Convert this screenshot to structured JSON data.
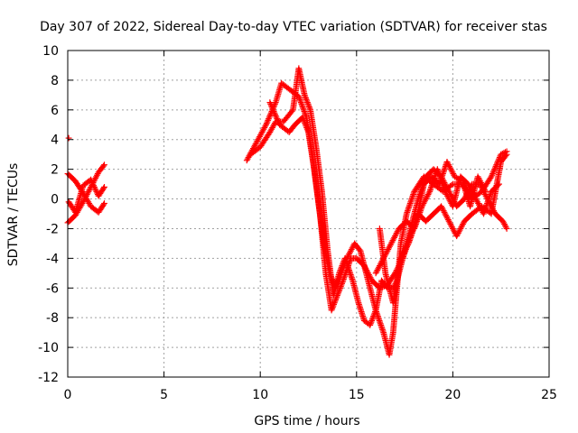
{
  "chart_data": {
    "type": "scatter",
    "title": "Day 307 of 2022, Sidereal Day-to-day VTEC variation (SDTVAR) for receiver stas",
    "xlabel": "GPS time / hours",
    "ylabel": "SDTVAR / TECUs",
    "xlim": [
      0,
      25
    ],
    "ylim": [
      -12,
      10
    ],
    "xticks": [
      0,
      5,
      10,
      15,
      20,
      25
    ],
    "yticks": [
      -12,
      -10,
      -8,
      -6,
      -4,
      -2,
      0,
      2,
      4,
      6,
      8,
      10
    ],
    "grid": true,
    "marker": "plus",
    "color": "#ff0000",
    "tracks": [
      [
        [
          0.05,
          4.1
        ]
      ],
      [
        [
          0.0,
          1.7
        ],
        [
          0.4,
          1.2
        ],
        [
          0.8,
          0.4
        ],
        [
          1.2,
          -0.5
        ],
        [
          1.6,
          -0.9
        ],
        [
          1.9,
          -0.3
        ]
      ],
      [
        [
          0.0,
          -1.6
        ],
        [
          0.4,
          -1.1
        ],
        [
          0.8,
          -0.2
        ],
        [
          1.2,
          0.8
        ],
        [
          1.6,
          1.8
        ],
        [
          1.9,
          2.3
        ]
      ],
      [
        [
          0.05,
          -0.2
        ],
        [
          0.4,
          -0.9
        ],
        [
          0.8,
          0.9
        ],
        [
          1.2,
          1.3
        ],
        [
          1.6,
          0.2
        ],
        [
          1.9,
          0.8
        ]
      ],
      [
        [
          9.3,
          2.6
        ],
        [
          9.8,
          3.8
        ],
        [
          10.3,
          5.0
        ],
        [
          10.8,
          6.5
        ],
        [
          11.1,
          7.8
        ],
        [
          11.6,
          7.3
        ],
        [
          12.0,
          6.9
        ],
        [
          12.4,
          5.5
        ],
        [
          12.7,
          3.0
        ],
        [
          13.0,
          0.0
        ],
        [
          13.3,
          -3.0
        ],
        [
          13.6,
          -5.0
        ],
        [
          13.9,
          -6.0
        ],
        [
          14.2,
          -5.0
        ],
        [
          14.5,
          -4.0
        ],
        [
          14.9,
          -3.0
        ],
        [
          15.2,
          -3.5
        ],
        [
          15.6,
          -5.5
        ],
        [
          16.0,
          -7.5
        ],
        [
          16.4,
          -9.0
        ],
        [
          16.7,
          -10.5
        ],
        [
          16.9,
          -9.0
        ],
        [
          17.1,
          -6.0
        ],
        [
          17.3,
          -3.0
        ],
        [
          17.6,
          -1.0
        ],
        [
          18.0,
          0.5
        ],
        [
          18.5,
          1.5
        ],
        [
          19.0,
          1.0
        ],
        [
          19.5,
          0.5
        ],
        [
          20.0,
          1.0
        ],
        [
          20.5,
          1.0
        ],
        [
          21.0,
          0.0
        ],
        [
          21.5,
          0.5
        ],
        [
          22.0,
          1.5
        ],
        [
          22.5,
          3.0
        ],
        [
          22.8,
          3.2
        ]
      ],
      [
        [
          9.5,
          3.0
        ],
        [
          10.0,
          3.5
        ],
        [
          10.5,
          4.5
        ],
        [
          10.8,
          5.2
        ],
        [
          11.2,
          5.2
        ],
        [
          11.7,
          6.0
        ],
        [
          12.0,
          8.8
        ],
        [
          12.3,
          7.0
        ],
        [
          12.6,
          6.0
        ],
        [
          12.9,
          3.5
        ],
        [
          13.2,
          0.5
        ],
        [
          13.5,
          -3.5
        ],
        [
          13.8,
          -6.5
        ],
        [
          14.1,
          -5.0
        ],
        [
          14.4,
          -4.0
        ],
        [
          14.8,
          -5.5
        ],
        [
          15.1,
          -7.0
        ],
        [
          15.4,
          -8.2
        ],
        [
          15.7,
          -8.5
        ],
        [
          16.0,
          -7.5
        ],
        [
          16.3,
          -5.5
        ],
        [
          16.6,
          -6.0
        ],
        [
          16.9,
          -6.0
        ],
        [
          17.1,
          -5.5
        ],
        [
          17.4,
          -4.0
        ],
        [
          17.8,
          -2.0
        ],
        [
          18.2,
          0.0
        ],
        [
          18.6,
          1.5
        ],
        [
          19.0,
          2.0
        ],
        [
          19.4,
          1.5
        ],
        [
          19.8,
          0.5
        ],
        [
          20.2,
          -0.5
        ],
        [
          20.6,
          0.0
        ],
        [
          21.0,
          1.0
        ],
        [
          21.4,
          1.0
        ],
        [
          21.8,
          0.0
        ],
        [
          22.2,
          -1.0
        ],
        [
          22.6,
          -1.5
        ],
        [
          22.8,
          -2.0
        ]
      ],
      [
        [
          10.5,
          6.5
        ],
        [
          11.0,
          5.0
        ],
        [
          11.5,
          4.5
        ],
        [
          11.8,
          5.0
        ],
        [
          12.2,
          5.5
        ],
        [
          12.5,
          4.5
        ],
        [
          12.8,
          2.0
        ],
        [
          13.1,
          -1.0
        ],
        [
          13.4,
          -5.0
        ],
        [
          13.7,
          -7.5
        ],
        [
          14.0,
          -6.5
        ],
        [
          14.3,
          -5.5
        ],
        [
          14.7,
          -4.0
        ],
        [
          15.0,
          -4.0
        ],
        [
          15.4,
          -4.5
        ],
        [
          15.8,
          -5.5
        ],
        [
          16.2,
          -6.0
        ],
        [
          16.6,
          -5.8
        ],
        [
          17.0,
          -5.0
        ],
        [
          17.4,
          -4.0
        ],
        [
          17.8,
          -2.5
        ],
        [
          18.2,
          -1.0
        ],
        [
          18.6,
          -1.5
        ],
        [
          19.0,
          -1.0
        ],
        [
          19.4,
          -0.5
        ],
        [
          19.8,
          -1.5
        ],
        [
          20.2,
          -2.5
        ],
        [
          20.6,
          -1.5
        ],
        [
          21.0,
          -1.0
        ],
        [
          21.5,
          -0.5
        ],
        [
          22.0,
          -1.0
        ],
        [
          22.5,
          2.5
        ],
        [
          22.8,
          3.0
        ]
      ],
      [
        [
          16.0,
          -5.0
        ],
        [
          16.4,
          -4.0
        ],
        [
          16.8,
          -3.0
        ],
        [
          17.2,
          -2.0
        ],
        [
          17.6,
          -1.5
        ],
        [
          18.0,
          -2.0
        ],
        [
          18.4,
          -0.5
        ],
        [
          18.8,
          0.5
        ],
        [
          19.2,
          2.0
        ],
        [
          19.6,
          0.5
        ],
        [
          20.0,
          -0.5
        ],
        [
          20.4,
          1.5
        ],
        [
          20.8,
          1.0
        ],
        [
          21.2,
          0.0
        ],
        [
          21.6,
          -1.0
        ],
        [
          22.0,
          0.5
        ],
        [
          22.4,
          1.0
        ]
      ],
      [
        [
          16.2,
          -2.0
        ],
        [
          16.5,
          -5.0
        ],
        [
          16.9,
          -7.0
        ],
        [
          17.3,
          -4.0
        ],
        [
          17.7,
          -3.0
        ],
        [
          18.1,
          -1.5
        ],
        [
          18.5,
          1.0
        ],
        [
          18.9,
          1.5
        ],
        [
          19.3,
          1.0
        ],
        [
          19.7,
          2.5
        ],
        [
          20.1,
          1.5
        ],
        [
          20.5,
          1.2
        ],
        [
          20.9,
          -0.5
        ],
        [
          21.3,
          1.5
        ],
        [
          21.7,
          0.5
        ]
      ]
    ]
  }
}
